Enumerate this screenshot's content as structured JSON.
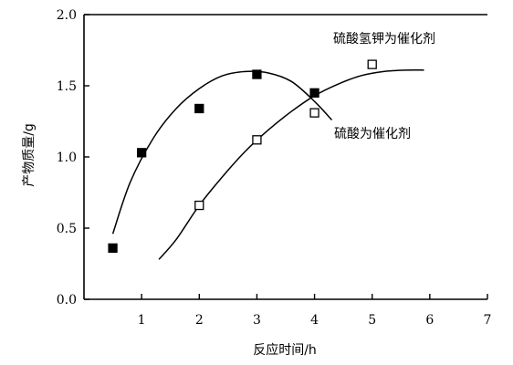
{
  "chart_data": {
    "type": "scatter",
    "title": "",
    "xlabel": "反应时间/h",
    "ylabel": "产物质量/g",
    "xlim": [
      0,
      7
    ],
    "ylim": [
      0,
      2.0
    ],
    "x_ticks": [
      1,
      2,
      3,
      4,
      5,
      6,
      7
    ],
    "x_tick_labels": [
      "1",
      "2",
      "3",
      "4",
      "5",
      "6",
      "7"
    ],
    "y_ticks": [
      0,
      0.5,
      1.0,
      1.5,
      2.0
    ],
    "y_tick_labels": [
      "0.0",
      "0.5",
      "1.0",
      "1.5",
      "2.0"
    ],
    "grid": false,
    "series": [
      {
        "name": "硫酸氢钾为催化剂",
        "marker": "filled-square",
        "color": "#000000",
        "x": [
          0.5,
          1,
          2,
          3,
          4
        ],
        "y": [
          0.36,
          1.03,
          1.34,
          1.58,
          1.45
        ],
        "curve": {
          "x": [
            0.5,
            0.8,
            1.2,
            1.6,
            2.0,
            2.4,
            2.8,
            3.2,
            3.6,
            4.0,
            4.3
          ],
          "y": [
            0.46,
            0.82,
            1.13,
            1.34,
            1.48,
            1.57,
            1.6,
            1.59,
            1.53,
            1.39,
            1.26
          ]
        }
      },
      {
        "name": "硫酸为催化剂",
        "marker": "open-square",
        "color": "#000000",
        "x": [
          2,
          3,
          4,
          5
        ],
        "y": [
          0.66,
          1.12,
          1.31,
          1.65
        ],
        "curve": {
          "x": [
            1.3,
            1.6,
            2.0,
            2.4,
            2.8,
            3.2,
            3.6,
            4.0,
            4.4,
            4.8,
            5.2,
            5.6,
            5.9
          ],
          "y": [
            0.28,
            0.42,
            0.66,
            0.86,
            1.04,
            1.19,
            1.32,
            1.43,
            1.51,
            1.57,
            1.6,
            1.61,
            1.61
          ]
        }
      }
    ],
    "annotations": [
      "硫酸氢钾为催化剂",
      "硫酸为催化剂"
    ]
  }
}
